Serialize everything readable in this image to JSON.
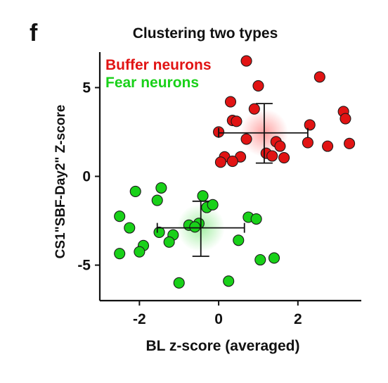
{
  "chart_data": {
    "type": "scatter",
    "panel_label": "f",
    "title": "Clustering two types",
    "xlabel": "BL z-score (averaged)",
    "ylabel": "CS1\"SBF-Day2\"  Z-score",
    "xlim": [
      -3,
      3.6
    ],
    "ylim": [
      -7,
      7
    ],
    "x_ticks": [
      -2,
      0,
      2
    ],
    "x_tick_labels": [
      "-2",
      "0",
      "2"
    ],
    "y_ticks": [
      -5,
      0,
      5
    ],
    "y_tick_labels": [
      "-5",
      "0",
      "5"
    ],
    "grid": false,
    "legend_position": "top-left",
    "series": [
      {
        "name": "Buffer neurons",
        "color": "#e11414",
        "points": [
          [
            0.7,
            6.5
          ],
          [
            2.55,
            5.6
          ],
          [
            1.0,
            5.1
          ],
          [
            0.3,
            4.2
          ],
          [
            0.9,
            3.8
          ],
          [
            3.15,
            3.65
          ],
          [
            0.35,
            3.15
          ],
          [
            0.45,
            3.1
          ],
          [
            3.2,
            3.25
          ],
          [
            2.3,
            2.9
          ],
          [
            0.0,
            2.5
          ],
          [
            0.7,
            2.1
          ],
          [
            2.25,
            1.9
          ],
          [
            1.45,
            1.95
          ],
          [
            1.55,
            1.7
          ],
          [
            2.75,
            1.7
          ],
          [
            3.3,
            1.85
          ],
          [
            0.15,
            1.1
          ],
          [
            0.55,
            1.1
          ],
          [
            1.2,
            1.3
          ],
          [
            1.35,
            1.15
          ],
          [
            1.65,
            1.05
          ],
          [
            0.35,
            0.85
          ],
          [
            0.05,
            0.8
          ]
        ],
        "mean": [
          1.15,
          2.45
        ],
        "error_x": [
          0.0,
          2.25
        ],
        "error_y": [
          0.75,
          4.1
        ]
      },
      {
        "name": "Fear neurons",
        "color": "#19d119",
        "points": [
          [
            -2.1,
            -0.85
          ],
          [
            -1.45,
            -0.65
          ],
          [
            -0.4,
            -1.1
          ],
          [
            -1.55,
            -1.35
          ],
          [
            -0.3,
            -1.75
          ],
          [
            -0.15,
            -1.6
          ],
          [
            -2.5,
            -2.25
          ],
          [
            -0.75,
            -2.75
          ],
          [
            -2.25,
            -2.9
          ],
          [
            -0.5,
            -2.65
          ],
          [
            0.75,
            -2.3
          ],
          [
            0.95,
            -2.4
          ],
          [
            -1.5,
            -3.15
          ],
          [
            -1.15,
            -3.3
          ],
          [
            -0.6,
            -2.85
          ],
          [
            -1.9,
            -3.9
          ],
          [
            -1.25,
            -3.7
          ],
          [
            0.5,
            -3.6
          ],
          [
            -2.5,
            -4.35
          ],
          [
            -2.0,
            -4.25
          ],
          [
            1.05,
            -4.7
          ],
          [
            1.4,
            -4.6
          ],
          [
            -1.0,
            -6.0
          ],
          [
            0.25,
            -5.9
          ]
        ],
        "mean": [
          -0.45,
          -2.9
        ],
        "error_x": [
          -1.55,
          0.65
        ],
        "error_y": [
          -4.5,
          -1.4
        ]
      }
    ]
  }
}
